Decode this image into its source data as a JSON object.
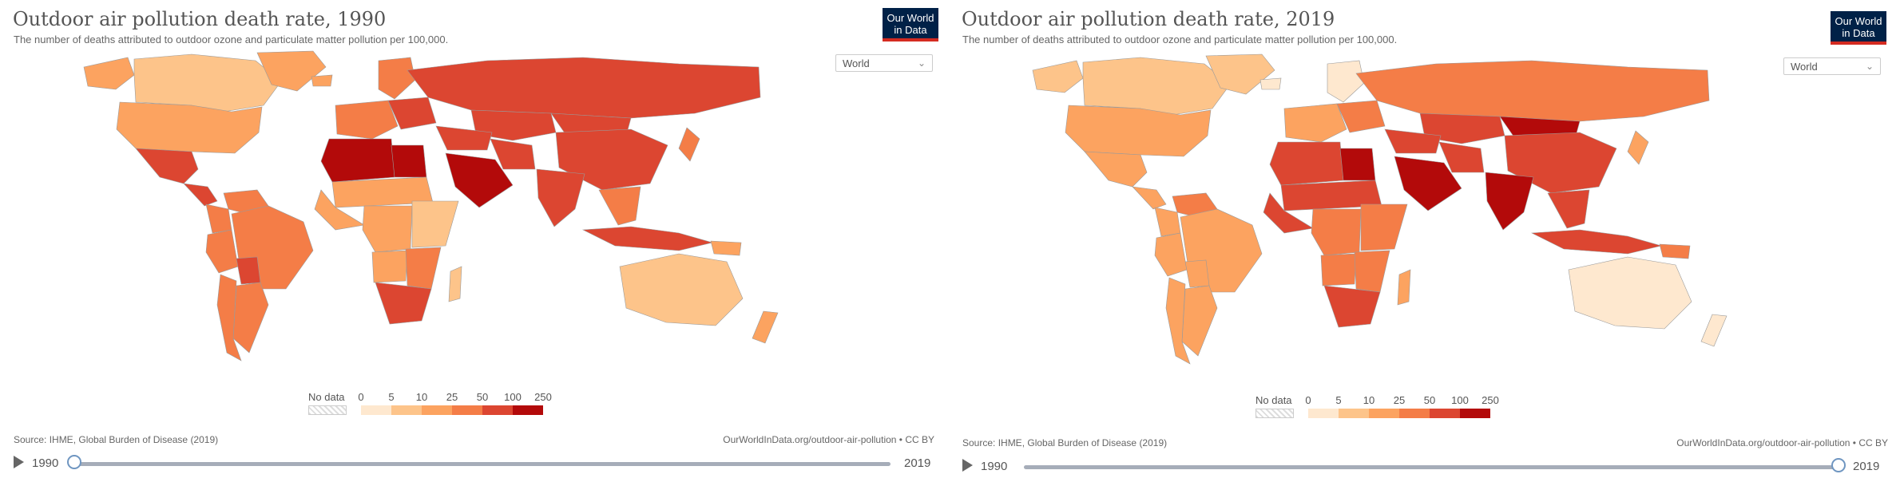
{
  "colors": {
    "bins": [
      "#fee8cf",
      "#fdc48a",
      "#fca360",
      "#f47d47",
      "#dc4631",
      "#b30a0a"
    ],
    "no_data": "#e8e8e8",
    "logo_bg": "#002147",
    "logo_accent": "#d42b21"
  },
  "legend": {
    "no_data_label": "No data",
    "ticks": [
      "0",
      "5",
      "10",
      "25",
      "50",
      "100",
      "250"
    ]
  },
  "charts": [
    {
      "id": "left",
      "title": "Outdoor air pollution death rate, 1990",
      "subtitle": "The number of deaths attributed to outdoor ozone and particulate matter pollution per 100,000.",
      "logo": [
        "Our World",
        "in Data"
      ],
      "region_select": "World",
      "source": "Source: IHME, Global Burden of Disease (2019)",
      "credit": "OurWorldInData.org/outdoor-air-pollution • CC BY",
      "timeline": {
        "start_label": "1990",
        "end_label": "2019",
        "selected_fraction": 0.0
      },
      "regions": [
        {
          "name": "Alaska",
          "bin": 2
        },
        {
          "name": "Canada",
          "bin": 1
        },
        {
          "name": "Greenland",
          "bin": 2
        },
        {
          "name": "USA",
          "bin": 2
        },
        {
          "name": "Mexico",
          "bin": 4
        },
        {
          "name": "Central America",
          "bin": 4
        },
        {
          "name": "Venezuela",
          "bin": 3
        },
        {
          "name": "Colombia",
          "bin": 3
        },
        {
          "name": "Peru",
          "bin": 3
        },
        {
          "name": "Brazil",
          "bin": 3
        },
        {
          "name": "Bolivia",
          "bin": 4
        },
        {
          "name": "Argentina",
          "bin": 3
        },
        {
          "name": "Chile",
          "bin": 3
        },
        {
          "name": "Iceland",
          "bin": 2
        },
        {
          "name": "Scandinavia",
          "bin": 3
        },
        {
          "name": "Western Europe",
          "bin": 3
        },
        {
          "name": "Eastern Europe",
          "bin": 4
        },
        {
          "name": "Russia",
          "bin": 4
        },
        {
          "name": "Kazakhstan",
          "bin": 4
        },
        {
          "name": "Mongolia",
          "bin": 4
        },
        {
          "name": "China",
          "bin": 4
        },
        {
          "name": "Japan",
          "bin": 3
        },
        {
          "name": "India",
          "bin": 4
        },
        {
          "name": "Southeast Asia",
          "bin": 3
        },
        {
          "name": "Indonesia",
          "bin": 4
        },
        {
          "name": "Middle East",
          "bin": 4
        },
        {
          "name": "Arabia",
          "bin": 5
        },
        {
          "name": "Iran",
          "bin": 4
        },
        {
          "name": "North Africa",
          "bin": 5
        },
        {
          "name": "Egypt",
          "bin": 5
        },
        {
          "name": "Sahel",
          "bin": 2
        },
        {
          "name": "West Africa",
          "bin": 2
        },
        {
          "name": "Central Africa",
          "bin": 2
        },
        {
          "name": "East Africa",
          "bin": 1
        },
        {
          "name": "Angola",
          "bin": 2
        },
        {
          "name": "Southern Africa",
          "bin": 3
        },
        {
          "name": "South Africa",
          "bin": 4
        },
        {
          "name": "Madagascar",
          "bin": 1
        },
        {
          "name": "Australia",
          "bin": 1
        },
        {
          "name": "New Zealand",
          "bin": 2
        },
        {
          "name": "Papua New Guinea",
          "bin": 2
        }
      ]
    },
    {
      "id": "right",
      "title": "Outdoor air pollution death rate, 2019",
      "subtitle": "The number of deaths attributed to outdoor ozone and particulate matter pollution per 100,000.",
      "logo": [
        "Our World",
        "in Data"
      ],
      "region_select": "World",
      "source": "Source: IHME, Global Burden of Disease (2019)",
      "credit": "OurWorldInData.org/outdoor-air-pollution • CC BY",
      "timeline": {
        "start_label": "1990",
        "end_label": "2019",
        "selected_fraction": 1.0
      },
      "regions": [
        {
          "name": "Alaska",
          "bin": 1
        },
        {
          "name": "Canada",
          "bin": 1
        },
        {
          "name": "Greenland",
          "bin": 1
        },
        {
          "name": "USA",
          "bin": 2
        },
        {
          "name": "Mexico",
          "bin": 2
        },
        {
          "name": "Central America",
          "bin": 2
        },
        {
          "name": "Venezuela",
          "bin": 3
        },
        {
          "name": "Colombia",
          "bin": 2
        },
        {
          "name": "Peru",
          "bin": 2
        },
        {
          "name": "Brazil",
          "bin": 2
        },
        {
          "name": "Bolivia",
          "bin": 2
        },
        {
          "name": "Argentina",
          "bin": 2
        },
        {
          "name": "Chile",
          "bin": 2
        },
        {
          "name": "Iceland",
          "bin": 0
        },
        {
          "name": "Scandinavia",
          "bin": 0
        },
        {
          "name": "Western Europe",
          "bin": 2
        },
        {
          "name": "Eastern Europe",
          "bin": 3
        },
        {
          "name": "Russia",
          "bin": 3
        },
        {
          "name": "Kazakhstan",
          "bin": 4
        },
        {
          "name": "Mongolia",
          "bin": 5
        },
        {
          "name": "China",
          "bin": 4
        },
        {
          "name": "Japan",
          "bin": 2
        },
        {
          "name": "India",
          "bin": 5
        },
        {
          "name": "Southeast Asia",
          "bin": 4
        },
        {
          "name": "Indonesia",
          "bin": 4
        },
        {
          "name": "Middle East",
          "bin": 4
        },
        {
          "name": "Arabia",
          "bin": 5
        },
        {
          "name": "Iran",
          "bin": 4
        },
        {
          "name": "North Africa",
          "bin": 4
        },
        {
          "name": "Egypt",
          "bin": 5
        },
        {
          "name": "Sahel",
          "bin": 4
        },
        {
          "name": "West Africa",
          "bin": 4
        },
        {
          "name": "Central Africa",
          "bin": 3
        },
        {
          "name": "East Africa",
          "bin": 3
        },
        {
          "name": "Angola",
          "bin": 3
        },
        {
          "name": "Southern Africa",
          "bin": 3
        },
        {
          "name": "South Africa",
          "bin": 4
        },
        {
          "name": "Madagascar",
          "bin": 2
        },
        {
          "name": "Australia",
          "bin": 0
        },
        {
          "name": "New Zealand",
          "bin": 0
        },
        {
          "name": "Papua New Guinea",
          "bin": 3
        }
      ]
    }
  ]
}
